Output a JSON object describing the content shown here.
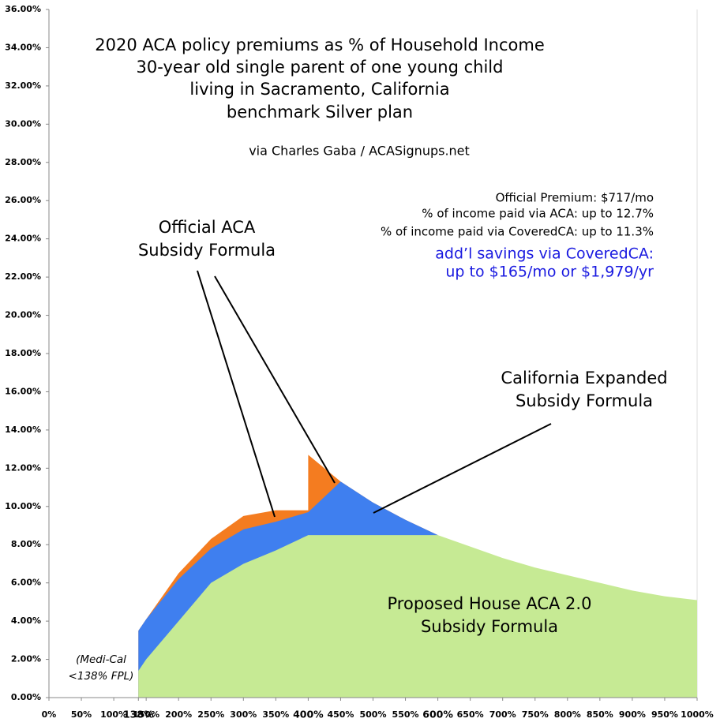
{
  "chart_data": {
    "type": "area",
    "title_lines": [
      "2020 ACA policy premiums as % of Household Income",
      "30-year old single parent of one young child",
      "living in Sacramento, California",
      "benchmark Silver plan"
    ],
    "credit": "via Charles Gaba / ACASignups.net",
    "info_lines": [
      "Official Premium: $717/mo",
      "% of income paid via ACA: up to 12.7%",
      "% of income paid via CoveredCA: up to 11.3%"
    ],
    "savings_lines": [
      "add’l savings via CoveredCA:",
      "up to $165/mo or $1,979/yr"
    ],
    "savings_color": "#1a1ae0",
    "annotations": [
      {
        "lines": [
          "Official ACA",
          "Subsidy Formula"
        ]
      },
      {
        "lines": [
          "California Expanded",
          "Subsidy Formula"
        ]
      },
      {
        "lines": [
          "Proposed House ACA 2.0",
          "Subsidy Formula"
        ]
      },
      {
        "lines": [
          "(Medi-Cal",
          "<138% FPL)"
        ]
      }
    ],
    "x": [
      138,
      150,
      200,
      250,
      300,
      350,
      400,
      400,
      450,
      500,
      550,
      600,
      650,
      700,
      750,
      800,
      850,
      900,
      950,
      1000
    ],
    "series": [
      {
        "color": "#f47c20",
        "values": [
          3.5,
          4.1,
          6.5,
          8.3,
          9.5,
          9.8,
          9.8,
          12.7,
          11.3,
          10.2,
          9.3,
          8.5,
          null,
          null,
          null,
          null,
          null,
          null,
          null,
          null
        ]
      },
      {
        "color": "#3f7fef",
        "values": [
          3.5,
          4.1,
          6.2,
          7.8,
          8.8,
          9.2,
          9.7,
          9.7,
          11.3,
          10.2,
          9.3,
          8.5,
          null,
          null,
          null,
          null,
          null,
          null,
          null,
          null
        ]
      },
      {
        "color": "#c6ea94",
        "values": [
          1.4,
          2.0,
          4.0,
          6.0,
          7.0,
          7.7,
          8.5,
          8.5,
          8.5,
          8.5,
          8.5,
          8.5,
          7.9,
          7.3,
          6.8,
          6.4,
          6.0,
          5.6,
          5.3,
          5.1
        ]
      }
    ],
    "xlim": [
      0,
      1000
    ],
    "ylim": [
      0,
      36
    ],
    "xticks": [
      {
        "value": 0,
        "label": "0%"
      },
      {
        "value": 50,
        "label": "50%"
      },
      {
        "value": 100,
        "label": "100%"
      },
      {
        "value": 138,
        "label": "138%",
        "bold": true
      },
      {
        "value": 150,
        "label": "150%"
      },
      {
        "value": 200,
        "label": "200%"
      },
      {
        "value": 250,
        "label": "250%"
      },
      {
        "value": 300,
        "label": "300%"
      },
      {
        "value": 350,
        "label": "350%"
      },
      {
        "value": 400,
        "label": "400%",
        "bold": true
      },
      {
        "value": 450,
        "label": "450%"
      },
      {
        "value": 500,
        "label": "500%"
      },
      {
        "value": 550,
        "label": "550%"
      },
      {
        "value": 600,
        "label": "600%",
        "bold": true
      },
      {
        "value": 650,
        "label": "650%"
      },
      {
        "value": 700,
        "label": "700%"
      },
      {
        "value": 750,
        "label": "750%"
      },
      {
        "value": 800,
        "label": "800%"
      },
      {
        "value": 850,
        "label": "850%"
      },
      {
        "value": 900,
        "label": "900%"
      },
      {
        "value": 950,
        "label": "950%"
      },
      {
        "value": 1000,
        "label": "1000%"
      }
    ],
    "yticks": [
      {
        "value": 0,
        "label": "0.00%"
      },
      {
        "value": 2,
        "label": "2.00%"
      },
      {
        "value": 4,
        "label": "4.00%"
      },
      {
        "value": 6,
        "label": "6.00%"
      },
      {
        "value": 8,
        "label": "8.00%"
      },
      {
        "value": 10,
        "label": "10.00%"
      },
      {
        "value": 12,
        "label": "12.00%"
      },
      {
        "value": 14,
        "label": "14.00%"
      },
      {
        "value": 16,
        "label": "16.00%"
      },
      {
        "value": 18,
        "label": "18.00%"
      },
      {
        "value": 20,
        "label": "20.00%"
      },
      {
        "value": 22,
        "label": "22.00%"
      },
      {
        "value": 24,
        "label": "24.00%"
      },
      {
        "value": 26,
        "label": "26.00%"
      },
      {
        "value": 28,
        "label": "28.00%"
      },
      {
        "value": 30,
        "label": "30.00%"
      },
      {
        "value": 32,
        "label": "32.00%"
      },
      {
        "value": 34,
        "label": "34.00%"
      },
      {
        "value": 36,
        "label": "36.00%"
      }
    ],
    "grid": false
  }
}
